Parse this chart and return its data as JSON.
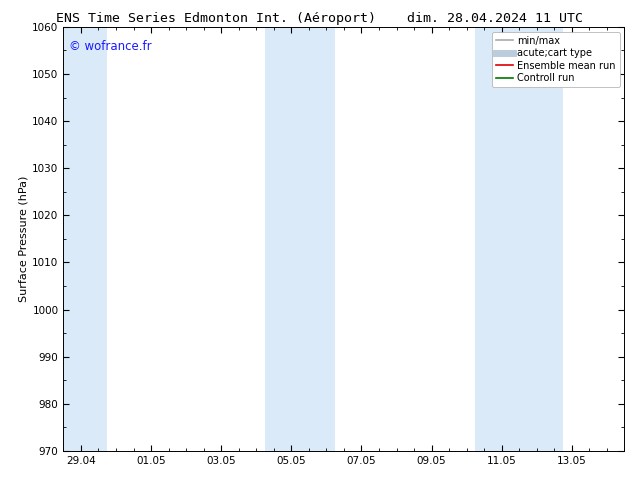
{
  "title_left": "ENS Time Series Edmonton Int. (Aéroport)",
  "title_right": "dim. 28.04.2024 11 UTC",
  "ylabel": "Surface Pressure (hPa)",
  "ylim": [
    970,
    1060
  ],
  "yticks": [
    970,
    980,
    990,
    1000,
    1010,
    1020,
    1030,
    1040,
    1050,
    1060
  ],
  "x_tick_labels": [
    "29.04",
    "01.05",
    "03.05",
    "05.05",
    "07.05",
    "09.05",
    "11.05",
    "13.05"
  ],
  "x_tick_positions": [
    0,
    2,
    4,
    6,
    8,
    10,
    12,
    14
  ],
  "xlim": [
    -0.5,
    15.5
  ],
  "watermark": "© wofrance.fr",
  "watermark_color": "#1a1aff",
  "background_color": "#ffffff",
  "plot_bg_color": "#ffffff",
  "shaded_bands": [
    {
      "x_start": -0.5,
      "x_end": 0.75,
      "color": "#daeaf8"
    },
    {
      "x_start": 5.25,
      "x_end": 7.25,
      "color": "#daeaf8"
    },
    {
      "x_start": 11.25,
      "x_end": 13.75,
      "color": "#daeaf8"
    }
  ],
  "legend_entries": [
    {
      "label": "min/max",
      "color": "#aaaaaa",
      "lw": 1.2
    },
    {
      "label": "acute;cart type",
      "color": "#bbccdd",
      "lw": 5.0
    },
    {
      "label": "Ensemble mean run",
      "color": "#dd0000",
      "lw": 1.2
    },
    {
      "label": "Controll run",
      "color": "#007700",
      "lw": 1.2
    }
  ],
  "title_fontsize": 9.5,
  "ylabel_fontsize": 8,
  "tick_fontsize": 7.5,
  "legend_fontsize": 7,
  "watermark_fontsize": 8.5
}
